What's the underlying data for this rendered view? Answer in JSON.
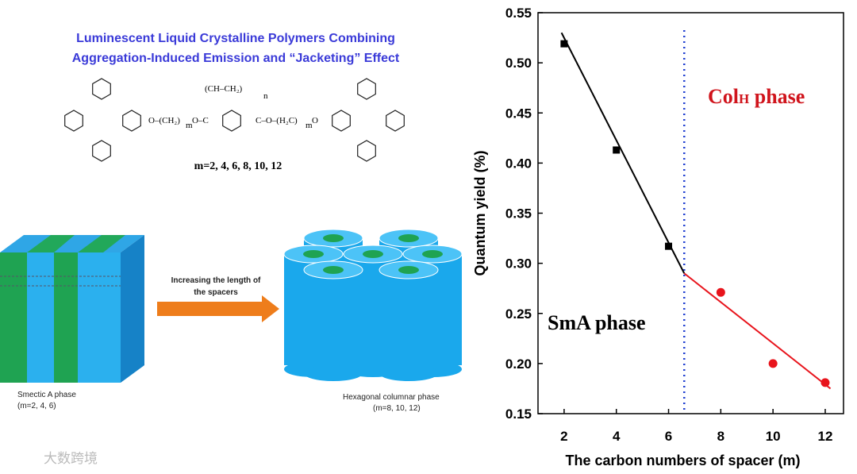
{
  "header": {
    "title_lines": [
      "Luminescent Liquid Crystalline Polymers Combining",
      "Aggregation-Induced Emission and “Jacketing” Effect"
    ]
  },
  "structure": {
    "fragments": [
      "(CH–CH₂)",
      "n",
      "O–(CH₂)",
      "m",
      "O–C",
      "C–O–(H₂C)",
      "m",
      "O"
    ],
    "caption": "m=2, 4, 6, 8, 10, 12"
  },
  "diagram": {
    "arrow_label_lines": [
      "Increasing the length of",
      "the spacers"
    ],
    "left_caption": [
      "Smectic A phase",
      "(m=2, 4, 6)"
    ],
    "right_caption": [
      "Hexagonal columnar phase",
      "(m=8, 10, 12)"
    ]
  },
  "watermark": "大数跨境",
  "chart_data": {
    "type": "scatter",
    "x_label": "The carbon numbers of spacer (m)",
    "y_label": "Quantum yield (%)",
    "xlim": [
      1,
      12.7
    ],
    "ylim": [
      0.15,
      0.55
    ],
    "xticks": [
      2,
      4,
      6,
      8,
      10,
      12
    ],
    "yticks": [
      0.15,
      {
        "value": 0.2,
        "label": "0.20"
      },
      0.25,
      {
        "value": 0.3,
        "label": "0.30"
      },
      0.35,
      {
        "value": 0.4,
        "label": "0.40"
      },
      0.45,
      {
        "value": 0.5,
        "label": "0.50"
      },
      0.55
    ],
    "series": [
      {
        "color": "#000000",
        "marker": "square",
        "x": [
          2,
          4,
          6
        ],
        "values": [
          0.519,
          0.413,
          0.317
        ]
      },
      {
        "color": "#e8141c",
        "marker": "circle",
        "x": [
          8,
          10,
          12
        ],
        "values": [
          0.271,
          0.2,
          0.181
        ]
      }
    ],
    "fit_lines": [
      {
        "color": "#000000",
        "x": [
          1.9,
          6.6
        ],
        "values": [
          0.53,
          0.29
        ]
      },
      {
        "color": "#e8141c",
        "x": [
          6.6,
          12.2
        ],
        "values": [
          0.29,
          0.175
        ]
      }
    ],
    "divider_x": 6.6,
    "divider_color": "#1f3fd1",
    "annotations": [
      {
        "parts": [
          "SmA phase"
        ],
        "color": "#000000"
      },
      {
        "parts": [
          "Col",
          "H",
          " phase"
        ],
        "color": "#d0141c"
      }
    ]
  }
}
